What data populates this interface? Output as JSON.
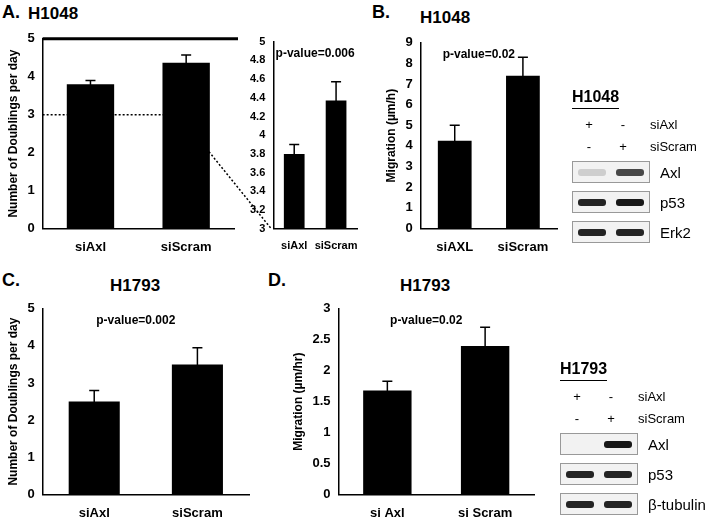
{
  "chart_data": [
    {
      "type": "bar",
      "panel_label": "A.",
      "title": "H1048",
      "y_label": "Number of Doublings per day",
      "categories": [
        "siAxl",
        "siScram"
      ],
      "values": [
        3.8,
        4.37
      ],
      "errors": [
        0.1,
        0.2
      ],
      "color": "#000000",
      "ylim": [
        0,
        5
      ],
      "yticks": [
        0,
        1,
        2,
        3,
        4,
        5
      ],
      "grid": false
    },
    {
      "type": "bar",
      "annotation": "p-value=0.006",
      "categories": [
        "siAxl",
        "siScram"
      ],
      "values": [
        3.8,
        4.37
      ],
      "errors": [
        0.1,
        0.2
      ],
      "color": "#000000",
      "ylim": [
        3,
        5
      ],
      "yticks": [
        3,
        3.2,
        3.4,
        3.6,
        3.8,
        4,
        4.2,
        4.4,
        4.6,
        4.8,
        5
      ],
      "grid": false
    },
    {
      "type": "bar",
      "panel_label": "B.",
      "title": "H1048",
      "y_label": "Migration (µm/h)",
      "annotation": "p-value=0.02",
      "categories": [
        "siAXL",
        "siScram"
      ],
      "values": [
        4.25,
        7.4
      ],
      "errors": [
        0.75,
        0.9
      ],
      "color": "#000000",
      "ylim": [
        0,
        9
      ],
      "yticks": [
        0,
        1,
        2,
        3,
        4,
        5,
        6,
        7,
        8,
        9
      ],
      "grid": false
    },
    {
      "type": "bar",
      "panel_label": "C.",
      "title": "H1793",
      "y_label": "Number of Doublings per day",
      "annotation": "p-value=0.002",
      "categories": [
        "siAxl",
        "siScram"
      ],
      "values": [
        2.5,
        3.5
      ],
      "errors": [
        0.3,
        0.45
      ],
      "color": "#000000",
      "ylim": [
        0,
        5
      ],
      "yticks": [
        0,
        1,
        2,
        3,
        4,
        5
      ],
      "grid": false
    },
    {
      "type": "bar",
      "panel_label": "D.",
      "title": "H1793",
      "y_label": "Migration (µm/hr)",
      "annotation": "p-value=0.02",
      "categories": [
        "si Axl",
        "si Scram"
      ],
      "values": [
        1.68,
        2.4
      ],
      "errors": [
        0.15,
        0.3
      ],
      "color": "#000000",
      "ylim": [
        0,
        3
      ],
      "yticks": [
        0,
        0.5,
        1,
        1.5,
        2,
        2.5,
        3
      ],
      "grid": false
    }
  ],
  "blots": [
    {
      "cell_line": "H1048",
      "conditions": [
        {
          "name": "siAxl",
          "lanes": [
            "+",
            "-"
          ]
        },
        {
          "name": "siScram",
          "lanes": [
            "-",
            "+"
          ]
        }
      ],
      "bands": [
        {
          "name": "Axl",
          "intensity": [
            0.15,
            0.7
          ]
        },
        {
          "name": "p53",
          "intensity": [
            0.85,
            0.9
          ]
        },
        {
          "name": "Erk2",
          "intensity": [
            0.85,
            0.85
          ]
        }
      ]
    },
    {
      "cell_line": "H1793",
      "conditions": [
        {
          "name": "siAxl",
          "lanes": [
            "+",
            "-"
          ]
        },
        {
          "name": "siScram",
          "lanes": [
            "-",
            "+"
          ]
        }
      ],
      "bands": [
        {
          "name": "Axl",
          "intensity": [
            0.0,
            0.9
          ]
        },
        {
          "name": "p53",
          "intensity": [
            0.85,
            0.85
          ]
        },
        {
          "name": "β-tubulin",
          "intensity": [
            0.85,
            0.85
          ]
        }
      ]
    }
  ]
}
